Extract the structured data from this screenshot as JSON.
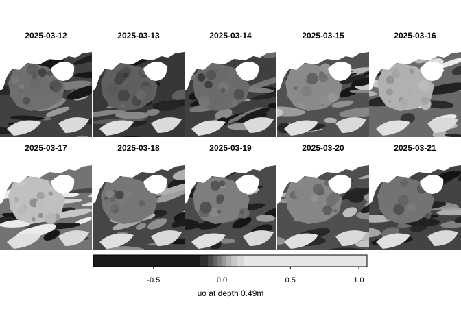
{
  "panels": [
    {
      "date": "2025-03-12",
      "tone": 0.38
    },
    {
      "date": "2025-03-13",
      "tone": 0.3
    },
    {
      "date": "2025-03-14",
      "tone": 0.36
    },
    {
      "date": "2025-03-15",
      "tone": 0.52
    },
    {
      "date": "2025-03-16",
      "tone": 0.72
    },
    {
      "date": "2025-03-17",
      "tone": 0.8
    },
    {
      "date": "2025-03-18",
      "tone": 0.42
    },
    {
      "date": "2025-03-19",
      "tone": 0.46
    },
    {
      "date": "2025-03-20",
      "tone": 0.5
    },
    {
      "date": "2025-03-21",
      "tone": 0.4
    }
  ],
  "legend": {
    "title": "uo at depth 0.49m",
    "ticks": [
      {
        "value": -0.5,
        "label": "-0.5"
      },
      {
        "value": 0.0,
        "label": "0.0"
      },
      {
        "value": 0.5,
        "label": "0.5"
      },
      {
        "value": 1.0,
        "label": "1.0"
      }
    ],
    "range": [
      -0.94,
      1.06
    ],
    "bins": [
      {
        "from": -0.94,
        "to": -0.16,
        "color": "#1a1a1a"
      },
      {
        "from": -0.16,
        "to": -0.1,
        "color": "#303030"
      },
      {
        "from": -0.1,
        "to": -0.06,
        "color": "#4a4a4a"
      },
      {
        "from": -0.06,
        "to": -0.03,
        "color": "#646464"
      },
      {
        "from": -0.03,
        "to": 0.0,
        "color": "#7e7e7e"
      },
      {
        "from": 0.0,
        "to": 0.03,
        "color": "#989898"
      },
      {
        "from": 0.03,
        "to": 0.07,
        "color": "#b2b2b2"
      },
      {
        "from": 0.07,
        "to": 0.11,
        "color": "#c8c8c8"
      },
      {
        "from": 0.11,
        "to": 0.16,
        "color": "#d8d8d8"
      },
      {
        "from": 0.16,
        "to": 1.06,
        "color": "#e6e6e6"
      }
    ]
  },
  "colors": {
    "land": "#ffffff",
    "dark": "#1a1a1a",
    "light": "#e6e6e6"
  }
}
